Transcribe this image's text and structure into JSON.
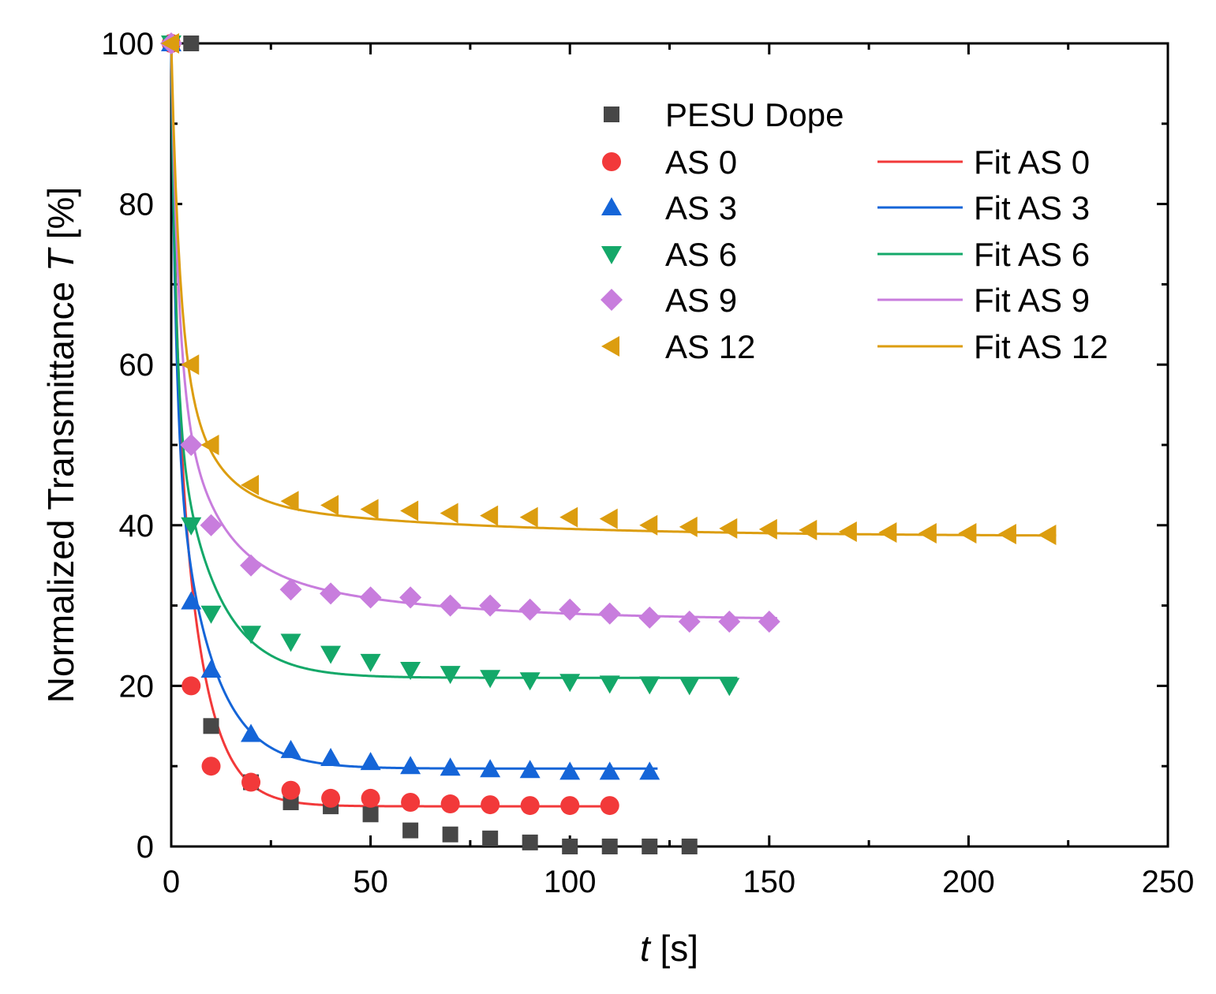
{
  "chart_data": {
    "type": "scatter",
    "title": "",
    "xlabel": {
      "var": "t",
      "unit": " [s]"
    },
    "ylabel": {
      "text": "Normalized Transmittance ",
      "var": "T",
      "unit": " [%]"
    },
    "xlim": [
      0,
      250
    ],
    "ylim": [
      0,
      100
    ],
    "x_ticks": [
      0,
      50,
      100,
      150,
      200,
      250
    ],
    "y_ticks": [
      0,
      20,
      40,
      60,
      80,
      100
    ],
    "x_tick_labels": [
      "0",
      "50",
      "100",
      "150",
      "200",
      "250"
    ],
    "y_tick_labels": [
      "0",
      "20",
      "40",
      "60",
      "80",
      "100"
    ],
    "grid": false,
    "legend_position": "top-right",
    "series": [
      {
        "name": "PESU Dope",
        "color": "#474747",
        "marker": "square",
        "x": [
          0,
          5,
          10,
          20,
          30,
          40,
          50,
          60,
          70,
          80,
          90,
          100,
          110,
          120,
          130
        ],
        "y": [
          100,
          100,
          15,
          8,
          5.5,
          5,
          4,
          2,
          1.5,
          1,
          0.5,
          0,
          0,
          0,
          0
        ]
      },
      {
        "name": "AS 0",
        "color": "#f2393a",
        "marker": "circle",
        "x": [
          0,
          5,
          10,
          20,
          30,
          40,
          50,
          60,
          70,
          80,
          90,
          100,
          110
        ],
        "y": [
          100,
          20,
          10,
          8,
          7,
          6,
          6,
          5.5,
          5.3,
          5.2,
          5.1,
          5.1,
          5.1
        ],
        "fit": {
          "name": "Fit AS 0",
          "x_max": 110,
          "inf": 5,
          "a1": 35,
          "tau1": 1.3,
          "a2": 60,
          "tau2": 6.5
        }
      },
      {
        "name": "AS 3",
        "color": "#1565d8",
        "marker": "triangle-up",
        "x": [
          0,
          5,
          10,
          20,
          30,
          40,
          50,
          60,
          70,
          80,
          90,
          100,
          110,
          120
        ],
        "y": [
          100,
          30.5,
          22,
          14,
          12,
          11,
          10.5,
          10,
          9.8,
          9.6,
          9.5,
          9.3,
          9.3,
          9.3
        ],
        "fit": {
          "name": "Fit AS 3",
          "x_max": 122,
          "inf": 9.7,
          "a1": 48,
          "tau1": 1.2,
          "a2": 42,
          "tau2": 9
        }
      },
      {
        "name": "AS 6",
        "color": "#14a869",
        "marker": "triangle-down",
        "x": [
          0,
          5,
          10,
          20,
          30,
          40,
          50,
          60,
          70,
          80,
          90,
          100,
          110,
          120,
          130,
          140
        ],
        "y": [
          100,
          40,
          29,
          26.5,
          25.5,
          24,
          23,
          22,
          21.5,
          21,
          20.7,
          20.5,
          20.3,
          20.2,
          20.1,
          20
        ],
        "fit": {
          "name": "Fit AS 6",
          "x_max": 142,
          "inf": 21,
          "a1": 45,
          "tau1": 1.2,
          "a2": 34,
          "tau2": 10
        }
      },
      {
        "name": "AS 9",
        "color": "#c87ddd",
        "marker": "diamond",
        "x": [
          0,
          5,
          10,
          20,
          30,
          40,
          50,
          60,
          70,
          80,
          90,
          100,
          110,
          120,
          130,
          140,
          150
        ],
        "y": [
          100,
          50,
          40,
          35,
          32,
          31.5,
          31,
          31,
          30,
          30,
          29.5,
          29.5,
          29,
          28.5,
          28,
          28,
          28
        ],
        "fit": {
          "name": "Fit AS 9",
          "x_max": 152,
          "inf": 28.2,
          "a1": 40,
          "tau1": 1.8,
          "a2": 23,
          "tau2": 9,
          "a3": 8.6,
          "tau3": 42
        }
      },
      {
        "name": "AS 12",
        "color": "#dc9d0f",
        "marker": "triangle-left",
        "x": [
          0,
          5,
          10,
          20,
          30,
          40,
          50,
          60,
          70,
          80,
          90,
          100,
          110,
          120,
          130,
          140,
          150,
          160,
          170,
          180,
          190,
          200,
          210,
          220
        ],
        "y": [
          100,
          60,
          50,
          45,
          43,
          42.5,
          42,
          41.8,
          41.5,
          41.2,
          41,
          41,
          40.8,
          40,
          39.8,
          39.6,
          39.5,
          39.4,
          39.2,
          39.1,
          39,
          39,
          38.9,
          38.8
        ],
        "fit": {
          "name": "Fit AS 12",
          "x_max": 222,
          "inf": 38.6,
          "a1": 35,
          "tau1": 2,
          "a2": 21.4,
          "tau2": 8,
          "a3": 5,
          "tau3": 60
        }
      }
    ]
  }
}
